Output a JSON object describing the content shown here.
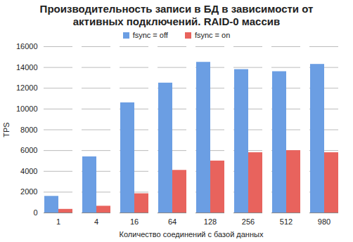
{
  "chart_data": {
    "type": "bar",
    "title": "Производительность записи в БД в зависимости от активных подключений. RAID-0 массив",
    "x_label": "Количество соединений с базой данных",
    "y_label": "TPS",
    "categories": [
      1,
      4,
      16,
      64,
      128,
      256,
      512,
      980
    ],
    "series": [
      {
        "name": "fsync = off",
        "color": "#6b9ee3",
        "values": [
          1600,
          5400,
          10600,
          12500,
          14500,
          13800,
          13600,
          14300
        ]
      },
      {
        "name": "fsync = on",
        "color": "#e8635d",
        "values": [
          350,
          650,
          1850,
          4100,
          5000,
          5800,
          6000,
          5800
        ]
      }
    ],
    "ylim": [
      0,
      16000
    ],
    "yticks": [
      0,
      2000,
      4000,
      6000,
      8000,
      10000,
      12000,
      14000,
      16000
    ],
    "grid": true,
    "legend": "top"
  }
}
